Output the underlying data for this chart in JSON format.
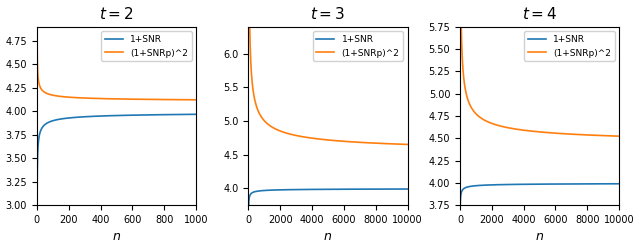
{
  "panels": [
    {
      "t": 2,
      "n_max": 1000,
      "n_min": 1,
      "xlim": [
        0,
        1000
      ],
      "ylim": [
        3.0,
        4.9
      ],
      "snrp_asym": 1.025,
      "snrp_c": 0.175
    },
    {
      "t": 3,
      "n_max": 10000,
      "n_min": 1,
      "xlim": [
        0,
        10000
      ],
      "ylim": [
        3.75,
        6.4
      ],
      "snrp_asym": 1.12,
      "snrp_c": 3.7
    },
    {
      "t": 4,
      "n_max": 10000,
      "n_min": 1,
      "xlim": [
        0,
        10000
      ],
      "ylim": [
        3.75,
        5.75
      ],
      "snrp_asym": 1.1,
      "snrp_c": 2.7
    }
  ],
  "blue_color": "#1f77b4",
  "orange_color": "#ff7f0e",
  "legend_blue": "1+SNR",
  "legend_orange": "(1+SNRp)^2",
  "title_fontsize": 11,
  "legend_fontsize": 6.5,
  "tick_fontsize": 7,
  "linewidth": 1.2
}
